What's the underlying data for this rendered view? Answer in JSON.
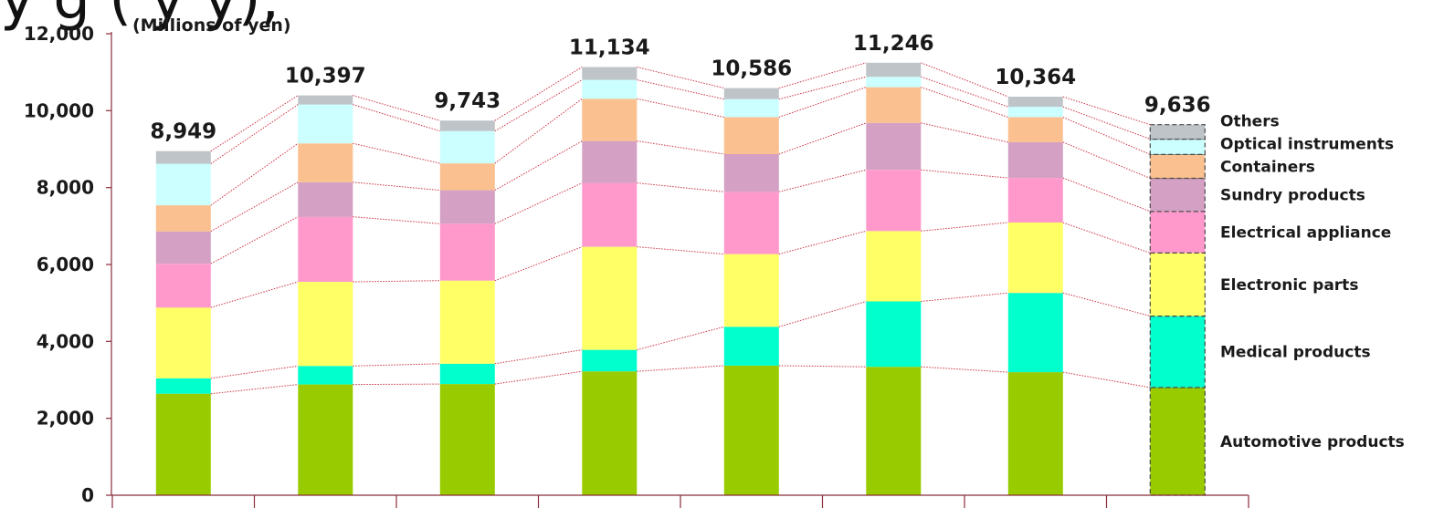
{
  "title_fragment": "y         g      (        y       y),",
  "chart_data": {
    "type": "bar",
    "stacked": true,
    "unit_label": "(Millions of yen)",
    "ylim": [
      0,
      12000
    ],
    "y_ticks": [
      0,
      2000,
      4000,
      6000,
      8000,
      10000,
      12000
    ],
    "y_tick_labels": [
      "0",
      "2,000",
      "4,000",
      "6,000",
      "8,000",
      "10,000",
      "12,000"
    ],
    "categories": [
      "",
      "",
      "",
      "",
      "",
      "",
      "",
      ""
    ],
    "totals": [
      8949,
      10397,
      9743,
      11134,
      10586,
      11246,
      10364,
      9636
    ],
    "total_labels": [
      "8,949",
      "10,397",
      "9,743",
      "11,134",
      "10,586",
      "11,246",
      "10,364",
      "9,636"
    ],
    "last_bar_dashed": true,
    "series": [
      {
        "name": "Automotive products",
        "color": "#99cc00",
        "values": [
          2640,
          2880,
          2890,
          3220,
          3370,
          3340,
          3200,
          2800
        ]
      },
      {
        "name": "Medical products",
        "color": "#00ffcc",
        "values": [
          400,
          480,
          530,
          560,
          1010,
          1700,
          2060,
          1860
        ]
      },
      {
        "name": "Electronic parts",
        "color": "#ffff66",
        "values": [
          1840,
          2190,
          2160,
          2680,
          1890,
          1830,
          1830,
          1640
        ]
      },
      {
        "name": "Electrical appliance",
        "color": "#ff99cc",
        "values": [
          1140,
          1690,
          1480,
          1660,
          1620,
          1590,
          1160,
          1080
        ]
      },
      {
        "name": "Sundry products",
        "color": "#d4a0c4",
        "values": [
          840,
          900,
          870,
          1090,
          980,
          1220,
          930,
          860
        ]
      },
      {
        "name": "Containers",
        "color": "#fac090",
        "values": [
          680,
          1010,
          700,
          1100,
          960,
          930,
          650,
          620
        ]
      },
      {
        "name": "Optical instruments",
        "color": "#ccffff",
        "values": [
          1080,
          1010,
          840,
          490,
          470,
          270,
          270,
          400
        ]
      },
      {
        "name": "Others",
        "color": "#bfc4c8",
        "values": [
          329,
          237,
          273,
          334,
          286,
          366,
          264,
          376
        ]
      }
    ],
    "connector_color": "#cc3344",
    "axis_color": "#8b2c3a",
    "legend_position": "right"
  }
}
